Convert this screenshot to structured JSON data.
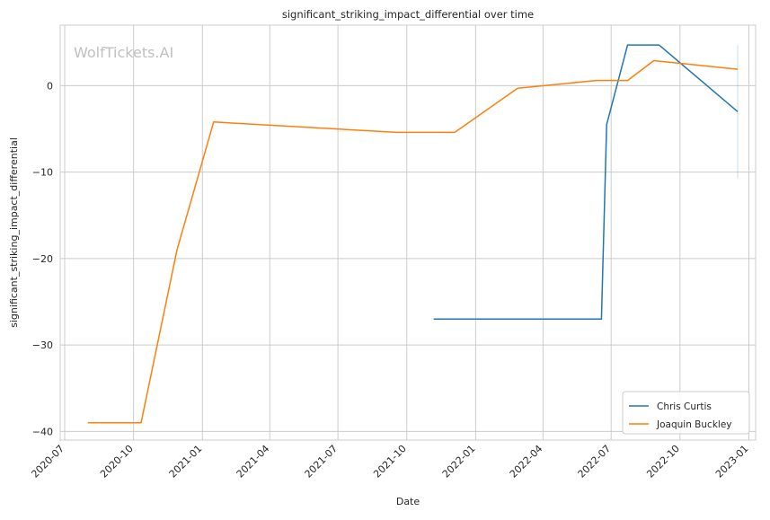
{
  "chart_data": {
    "type": "line",
    "title": "significant_striking_impact_differential over time",
    "xlabel": "Date",
    "ylabel": "significant_striking_impact_differential",
    "watermark": "WolfTickets.AI",
    "x_axis_type": "date",
    "xlim": [
      "2020-06-25",
      "2023-01-10"
    ],
    "ylim": [
      -41,
      7
    ],
    "y_ticks": [
      0,
      -10,
      -20,
      -30,
      -40
    ],
    "y_tick_labels": [
      "0",
      "−10",
      "−20",
      "−30",
      "−40"
    ],
    "x_ticks": [
      "2020-07-01",
      "2020-10-01",
      "2021-01-01",
      "2021-04-01",
      "2021-07-01",
      "2021-10-01",
      "2022-01-01",
      "2022-04-01",
      "2022-07-01",
      "2022-10-01",
      "2023-01-01"
    ],
    "x_tick_labels": [
      "2020-07",
      "2020-10",
      "2021-01",
      "2021-04",
      "2021-07",
      "2021-10",
      "2022-01",
      "2022-04",
      "2022-07",
      "2022-10",
      "2023-01"
    ],
    "grid": true,
    "legend_position": "bottom-right",
    "series": [
      {
        "name": "Chris Curtis",
        "color": "#1f77b4",
        "points": [
          {
            "x": "2021-11-06",
            "y": -27.0
          },
          {
            "x": "2022-06-18",
            "y": -27.0
          },
          {
            "x": "2022-06-25",
            "y": -4.5
          },
          {
            "x": "2022-07-23",
            "y": 4.7
          },
          {
            "x": "2022-09-03",
            "y": 4.7
          },
          {
            "x": "2022-12-17",
            "y": -3.0
          }
        ],
        "error_band": {
          "x": "2022-12-17",
          "y_low": -10.7,
          "y_high": 4.7
        }
      },
      {
        "name": "Joaquin Buckley",
        "color": "#ff7f0e",
        "points": [
          {
            "x": "2020-08-01",
            "y": -39.0
          },
          {
            "x": "2020-10-11",
            "y": -39.0
          },
          {
            "x": "2020-11-28",
            "y": -19.0
          },
          {
            "x": "2021-01-16",
            "y": -4.2
          },
          {
            "x": "2021-09-18",
            "y": -5.4
          },
          {
            "x": "2021-12-04",
            "y": -5.4
          },
          {
            "x": "2022-02-26",
            "y": -0.3
          },
          {
            "x": "2022-06-11",
            "y": 0.6
          },
          {
            "x": "2022-07-23",
            "y": 0.6
          },
          {
            "x": "2022-08-27",
            "y": 2.9
          },
          {
            "x": "2022-12-17",
            "y": 1.9
          }
        ]
      }
    ]
  }
}
